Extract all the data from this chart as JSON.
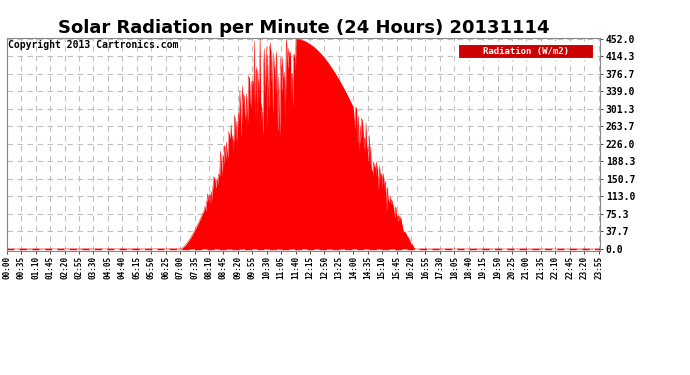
{
  "title": "Solar Radiation per Minute (24 Hours) 20131114",
  "copyright": "Copyright 2013 Cartronics.com",
  "legend_label": "Radiation (W/m2)",
  "yticks": [
    0.0,
    37.7,
    75.3,
    113.0,
    150.7,
    188.3,
    226.0,
    263.7,
    301.3,
    339.0,
    376.7,
    414.3,
    452.0
  ],
  "ymax": 452.0,
  "fill_color": "#ff0000",
  "line_color": "#ff0000",
  "bg_color": "#ffffff",
  "plot_bg_color": "#ffffff",
  "grid_color": "#c0c0c0",
  "dashed_zero_color": "#ff0000",
  "legend_bg": "#cc0000",
  "legend_text_color": "#ffffff",
  "title_fontsize": 13,
  "copyright_fontsize": 7,
  "sunrise_minute": 420,
  "sunset_minute": 990,
  "solar_noon_minute": 695,
  "peak_value": 452.0,
  "tick_interval_minutes": 35
}
